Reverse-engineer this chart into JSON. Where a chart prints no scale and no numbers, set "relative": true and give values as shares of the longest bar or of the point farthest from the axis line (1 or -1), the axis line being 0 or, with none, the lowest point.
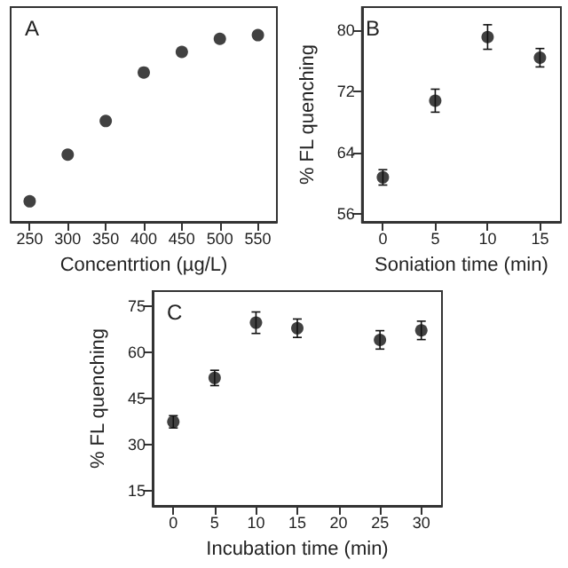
{
  "chart_data": [
    {
      "type": "scatter",
      "title": "A",
      "xlabel": "Concentrtion (µg/L)",
      "relative": true,
      "x": [
        250,
        300,
        350,
        400,
        450,
        500,
        550
      ],
      "xlim": [
        225,
        575
      ],
      "xticks": [
        250,
        300,
        350,
        400,
        450,
        500,
        550
      ],
      "series": [
        {
          "color": "#111111",
          "values": [
            0.11,
            0.36,
            0.54,
            0.8,
            0.91,
            0.98,
            1
          ]
        }
      ],
      "marker": "circle",
      "grid": false,
      "tick_labels": "x"
    },
    {
      "type": "scatter",
      "title": "B",
      "xlabel": "Soniation time (min)",
      "ylabel": "% FL quenching",
      "x": [
        0,
        5,
        10,
        15
      ],
      "xlim": [
        -2,
        17
      ],
      "xticks": [
        0,
        5,
        10,
        15
      ],
      "ylim": [
        55,
        83
      ],
      "yticks": [
        56,
        64,
        72,
        80
      ],
      "series": [
        {
          "color": "#111111",
          "values": [
            60.8,
            70.8,
            79.1,
            76.4
          ],
          "errors": [
            1,
            1.5,
            1.6,
            1.2
          ]
        }
      ],
      "marker": "circle",
      "grid": false
    },
    {
      "type": "scatter",
      "title": "C",
      "xlabel": "Incubation time (min)",
      "ylabel": "% FL quenching",
      "x": [
        0,
        5,
        10,
        15,
        25,
        30
      ],
      "xlim": [
        -2.5,
        32.5
      ],
      "xticks": [
        0,
        5,
        10,
        15,
        20,
        25,
        30
      ],
      "ylim": [
        10,
        80
      ],
      "yticks": [
        15,
        30,
        45,
        60,
        75
      ],
      "series": [
        {
          "color": "#111111",
          "values": [
            37.4,
            51.7,
            69.7,
            67.9,
            64.1,
            67.2
          ],
          "errors": [
            2,
            2.5,
            3.5,
            3,
            3,
            3
          ]
        }
      ],
      "marker": "circle",
      "grid": false
    }
  ]
}
